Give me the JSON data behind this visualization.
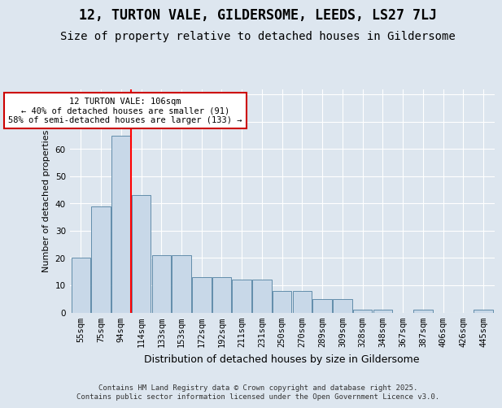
{
  "title": "12, TURTON VALE, GILDERSOME, LEEDS, LS27 7LJ",
  "subtitle": "Size of property relative to detached houses in Gildersome",
  "xlabel": "Distribution of detached houses by size in Gildersome",
  "ylabel": "Number of detached properties",
  "categories": [
    "55sqm",
    "75sqm",
    "94sqm",
    "114sqm",
    "133sqm",
    "153sqm",
    "172sqm",
    "192sqm",
    "211sqm",
    "231sqm",
    "250sqm",
    "270sqm",
    "289sqm",
    "309sqm",
    "328sqm",
    "348sqm",
    "367sqm",
    "387sqm",
    "406sqm",
    "426sqm",
    "445sqm"
  ],
  "values": [
    20,
    39,
    65,
    43,
    21,
    21,
    13,
    13,
    12,
    12,
    8,
    8,
    5,
    5,
    1,
    1,
    0,
    1,
    0,
    0,
    1
  ],
  "bar_color": "#c8d8e8",
  "bar_edge_color": "#5080a0",
  "red_line_x": 2.5,
  "annotation_text": "12 TURTON VALE: 106sqm\n← 40% of detached houses are smaller (91)\n58% of semi-detached houses are larger (133) →",
  "annotation_box_facecolor": "#ffffff",
  "annotation_box_edgecolor": "#cc0000",
  "ylim": [
    0,
    82
  ],
  "yticks": [
    0,
    10,
    20,
    30,
    40,
    50,
    60,
    70,
    80
  ],
  "fig_facecolor": "#dde6ef",
  "ax_facecolor": "#dde6ef",
  "grid_color": "#ffffff",
  "footer_text": "Contains HM Land Registry data © Crown copyright and database right 2025.\nContains public sector information licensed under the Open Government Licence v3.0.",
  "title_fontsize": 12,
  "subtitle_fontsize": 10,
  "xlabel_fontsize": 9,
  "ylabel_fontsize": 8,
  "tick_fontsize": 7.5,
  "annotation_fontsize": 7.5,
  "footer_fontsize": 6.5
}
